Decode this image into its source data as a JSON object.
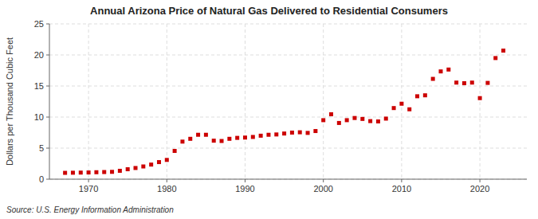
{
  "chart_data": {
    "type": "scatter",
    "title": "Annual Arizona Price of Natural Gas Delivered to Residential Consumers",
    "ylabel": "Dollars per Thousand Cubic Feet",
    "annotations": [
      "Source: U.S. Energy Information Administration"
    ],
    "color": "#cc0000",
    "marker": "square",
    "grid": true,
    "x": [
      1967,
      1968,
      1969,
      1970,
      1971,
      1972,
      1973,
      1974,
      1975,
      1976,
      1977,
      1978,
      1979,
      1980,
      1981,
      1982,
      1983,
      1984,
      1985,
      1986,
      1987,
      1988,
      1989,
      1990,
      1991,
      1992,
      1993,
      1994,
      1995,
      1996,
      1997,
      1998,
      1999,
      2000,
      2001,
      2002,
      2003,
      2004,
      2005,
      2006,
      2007,
      2008,
      2009,
      2010,
      2011,
      2012,
      2013,
      2014,
      2015,
      2016,
      2017,
      2018,
      2019,
      2020,
      2021,
      2022,
      2023
    ],
    "values": [
      1.02,
      1.04,
      1.06,
      1.08,
      1.12,
      1.15,
      1.18,
      1.35,
      1.6,
      1.8,
      2.05,
      2.35,
      2.75,
      3.1,
      4.55,
      6.05,
      6.5,
      7.15,
      7.15,
      6.2,
      6.15,
      6.5,
      6.65,
      6.7,
      6.8,
      7.0,
      7.15,
      7.2,
      7.35,
      7.5,
      7.55,
      7.45,
      7.75,
      9.5,
      10.45,
      9.05,
      9.5,
      9.85,
      9.7,
      9.35,
      9.3,
      9.75,
      11.45,
      12.15,
      11.25,
      13.35,
      13.5,
      16.15,
      17.35,
      17.65,
      15.55,
      15.45,
      15.55,
      13.05,
      15.5,
      19.5,
      20.7
    ],
    "xlim": [
      1965,
      2026
    ],
    "ylim": [
      0,
      25
    ],
    "xticks": [
      1970,
      1980,
      1990,
      2000,
      2010,
      2020
    ],
    "yticks": [
      0,
      5,
      10,
      15,
      20,
      25
    ]
  }
}
